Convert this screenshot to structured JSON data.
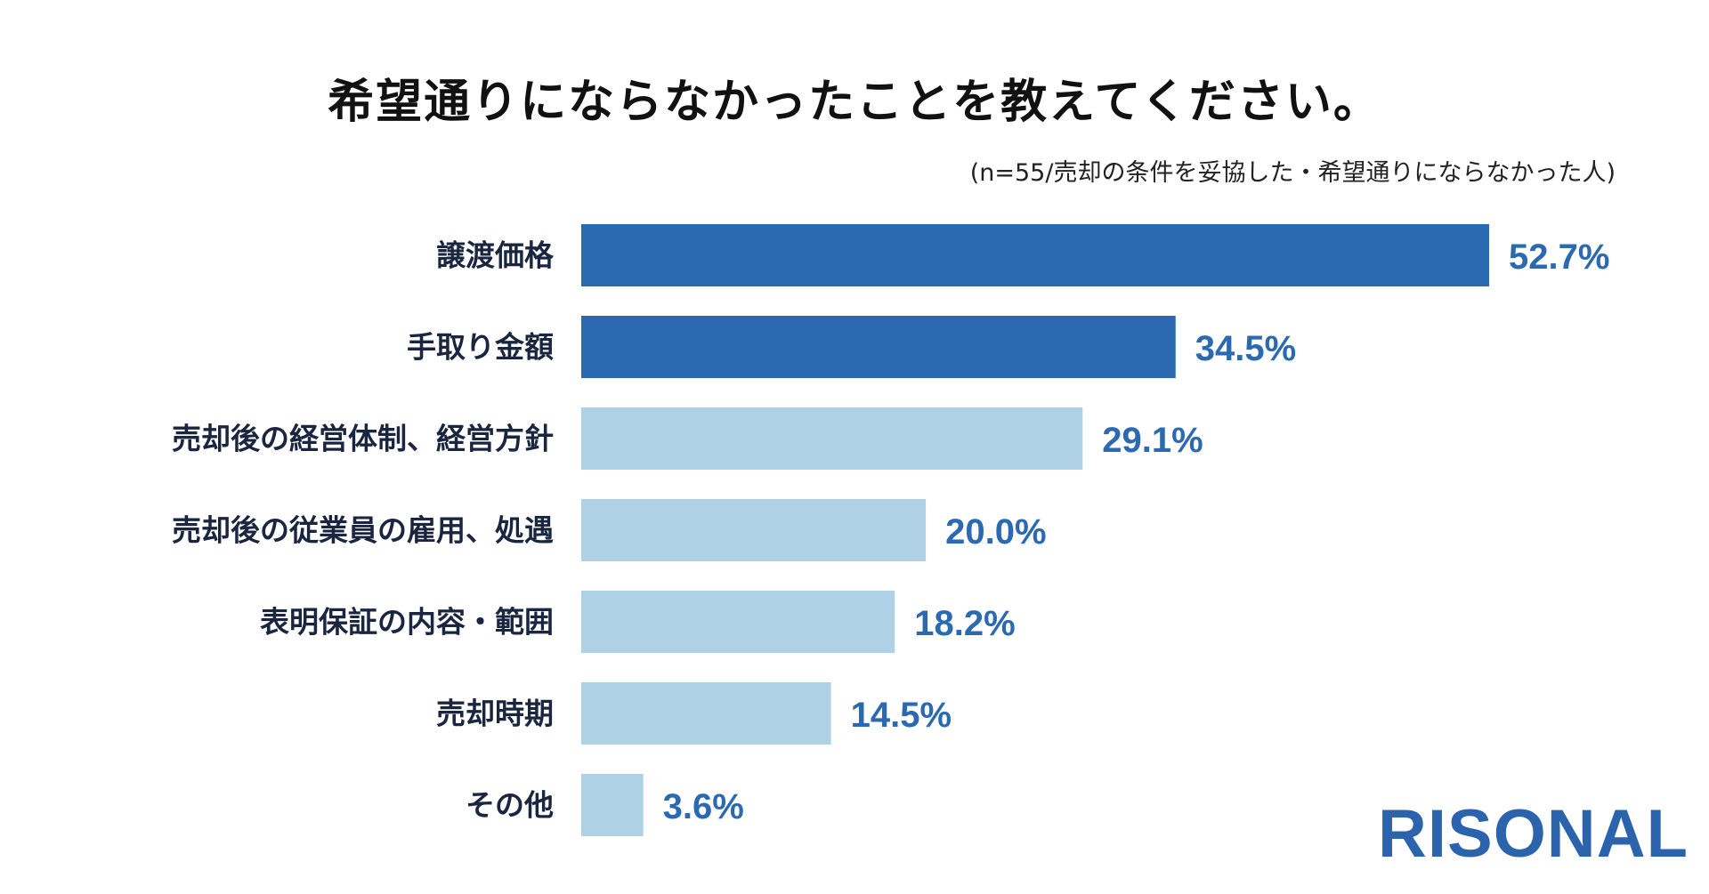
{
  "title": "希望通りにならなかったことを教えてください。",
  "subtitle": "(n=55/売却の条件を妥協した・希望通りにならなかった人)",
  "logo": {
    "text": "RISONAL",
    "color": "#2b63ad"
  },
  "colors": {
    "highlight": "#2b6ab1",
    "regular": "#aed1e5",
    "value_text": "#2b6ab1"
  },
  "chart_data": {
    "type": "bar",
    "orientation": "horizontal",
    "categories": [
      "譲渡価格",
      "手取り金額",
      "売却後の経営体制、経営方針",
      "売却後の従業員の雇用、処遇",
      "表明保証の内容・範囲",
      "売却時期",
      "その他"
    ],
    "values": [
      52.7,
      34.5,
      29.1,
      20.0,
      18.2,
      14.5,
      3.6
    ],
    "value_labels": [
      "52.7%",
      "34.5%",
      "29.1%",
      "20.0%",
      "18.2%",
      "14.5%",
      "3.6%"
    ],
    "highlighted": [
      true,
      true,
      false,
      false,
      false,
      false,
      false
    ],
    "unit": "%",
    "xlim": [
      0,
      52.7
    ],
    "grid": false,
    "legend": "none"
  }
}
